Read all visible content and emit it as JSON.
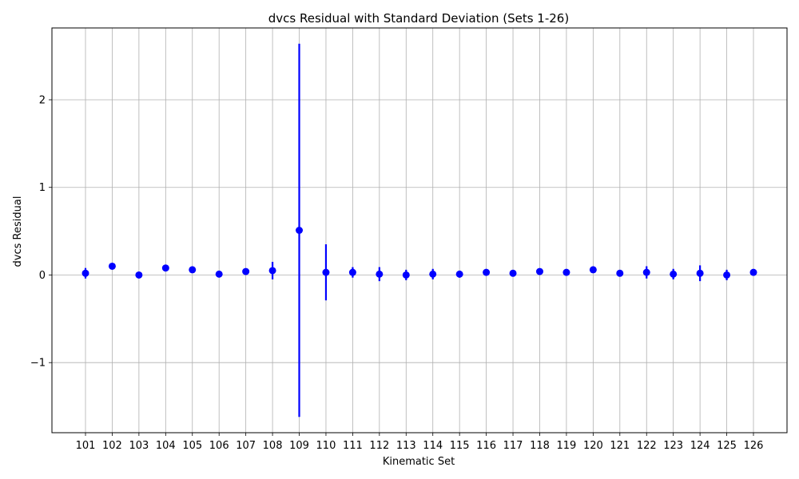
{
  "chart_data": {
    "type": "scatter",
    "title": "dvcs Residual with Standard Deviation (Sets 1-26)",
    "xlabel": "Kinematic Set",
    "ylabel": "dvcs Residual",
    "categories": [
      "101",
      "102",
      "103",
      "104",
      "105",
      "106",
      "107",
      "108",
      "109",
      "110",
      "111",
      "112",
      "113",
      "114",
      "115",
      "116",
      "117",
      "118",
      "119",
      "120",
      "121",
      "122",
      "123",
      "124",
      "125",
      "126"
    ],
    "values": [
      0.02,
      0.1,
      0.0,
      0.08,
      0.06,
      0.01,
      0.04,
      0.05,
      0.51,
      0.03,
      0.03,
      0.01,
      0.0,
      0.01,
      0.01,
      0.03,
      0.02,
      0.04,
      0.03,
      0.06,
      0.02,
      0.03,
      0.01,
      0.02,
      0.0,
      0.03
    ],
    "errors": [
      0.06,
      0.0,
      0.0,
      0.0,
      0.0,
      0.0,
      0.0,
      0.1,
      2.13,
      0.32,
      0.06,
      0.08,
      0.06,
      0.06,
      0.04,
      0.0,
      0.0,
      0.0,
      0.0,
      0.0,
      0.0,
      0.07,
      0.06,
      0.09,
      0.06,
      0.02
    ],
    "ylim": [
      -1.8,
      2.82
    ],
    "yticks": [
      -1,
      0,
      1,
      2
    ],
    "ytick_labels": [
      "−1",
      "0",
      "1",
      "2"
    ],
    "grid": true,
    "color": "#0000ff",
    "grid_color": "#b0b0b0"
  }
}
